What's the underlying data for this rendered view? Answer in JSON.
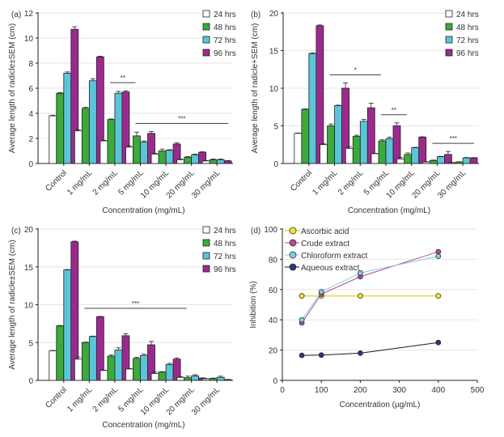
{
  "chart_data": [
    {
      "panel": "(a)",
      "type": "bar",
      "title": "",
      "xlabel": "Concentration (mg/mL)",
      "ylabel": "Average length of radicle±SEM (cm)",
      "ylim": [
        0,
        12
      ],
      "yticks": [
        0,
        2,
        4,
        6,
        8,
        10,
        12
      ],
      "grid": true,
      "legend_position": "top-right",
      "categories": [
        "Control",
        "1 mg/mL",
        "2 mg/mL",
        "5 mg/mL",
        "10 mg/mL",
        "20 mg/mL",
        "30 mg/mL"
      ],
      "series": [
        {
          "name": "24 hrs",
          "color": "#ffffff",
          "values": [
            3.8,
            2.6,
            1.8,
            1.3,
            0.75,
            0.3,
            0.2
          ],
          "errors": [
            0.05,
            0.1,
            0.05,
            0.1,
            0.05,
            0.05,
            0.03
          ]
        },
        {
          "name": "48 hrs",
          "color": "#3aaa3a",
          "values": [
            5.6,
            4.4,
            3.5,
            2.2,
            1.0,
            0.5,
            0.3
          ],
          "errors": [
            0.05,
            0.08,
            0.05,
            0.3,
            0.15,
            0.05,
            0.05
          ]
        },
        {
          "name": "72 hrs",
          "color": "#5bc4d8",
          "values": [
            7.2,
            6.6,
            5.6,
            1.7,
            1.05,
            0.7,
            0.3
          ],
          "errors": [
            0.1,
            0.15,
            0.15,
            0.1,
            0.05,
            0.05,
            0.05
          ]
        },
        {
          "name": "96 hrs",
          "color": "#9b2a8e",
          "values": [
            10.7,
            8.5,
            5.7,
            2.4,
            1.55,
            0.9,
            0.2
          ],
          "errors": [
            0.2,
            0.05,
            0.1,
            0.15,
            0.1,
            0.03,
            0.03
          ]
        }
      ],
      "annotations": [
        {
          "text": "**",
          "from": 2,
          "to": 3
        },
        {
          "text": "***",
          "from": 3,
          "to": 6
        }
      ]
    },
    {
      "panel": "(b)",
      "type": "bar",
      "title": "",
      "xlabel": "Concentration (mg/mL)",
      "ylabel": "Average length of radicle+SEM (cm)",
      "ylim": [
        0,
        20
      ],
      "yticks": [
        0,
        5,
        10,
        15,
        20
      ],
      "grid": true,
      "legend_position": "top-right",
      "categories": [
        "Control",
        "1 mg/mL",
        "2 mg/mL",
        "5 mg/mL",
        "10 mg/mL",
        "20 mg/mL",
        "30 mg/mL"
      ],
      "series": [
        {
          "name": "24 hrs",
          "color": "#ffffff",
          "values": [
            4.0,
            2.5,
            2.0,
            1.3,
            0.6,
            0.2,
            0.1
          ],
          "errors": [
            0.05,
            0.1,
            0.2,
            0.05,
            0.2,
            0.05,
            0.03
          ]
        },
        {
          "name": "48 hrs",
          "color": "#3aaa3a",
          "values": [
            7.2,
            5.0,
            3.6,
            3.0,
            1.2,
            0.4,
            0.2
          ],
          "errors": [
            0.05,
            0.25,
            0.15,
            0.15,
            0.2,
            0.05,
            0.03
          ]
        },
        {
          "name": "72 hrs",
          "color": "#5bc4d8",
          "values": [
            14.6,
            7.7,
            5.6,
            3.3,
            2.1,
            0.9,
            0.75
          ],
          "errors": [
            0.1,
            0.05,
            0.25,
            0.2,
            0.05,
            0.05,
            0.05
          ]
        },
        {
          "name": "96 hrs",
          "color": "#9b2a8e",
          "values": [
            18.3,
            10.0,
            7.4,
            5.0,
            3.5,
            1.2,
            0.75
          ],
          "errors": [
            0.1,
            0.7,
            0.6,
            0.4,
            0.05,
            0.4,
            0.03
          ]
        }
      ],
      "annotations": [
        {
          "text": "*",
          "from": 1,
          "to": 3
        },
        {
          "text": "**",
          "from": 3,
          "to": 4
        },
        {
          "text": "***",
          "from": 5,
          "to": 6
        }
      ]
    },
    {
      "panel": "(c)",
      "type": "bar",
      "title": "",
      "xlabel": "Concentration (mg/mL)",
      "ylabel": "Average length of radicle±SEM (cm)",
      "ylim": [
        0,
        20
      ],
      "yticks": [
        0,
        5,
        10,
        15,
        20
      ],
      "grid": true,
      "legend_position": "top-right",
      "categories": [
        "Control",
        "1 mg/mL",
        "2 mg/mL",
        "5 mg/mL",
        "10 mg/mL",
        "20 mg/mL",
        "30 mg/mL"
      ],
      "series": [
        {
          "name": "24 hrs",
          "color": "#ffffff",
          "values": [
            3.9,
            2.8,
            1.3,
            1.5,
            0.9,
            0.4,
            0.2
          ],
          "errors": [
            0.05,
            0.3,
            0.03,
            0.05,
            0.2,
            0.1,
            0.03
          ]
        },
        {
          "name": "48 hrs",
          "color": "#3aaa3a",
          "values": [
            7.2,
            5.0,
            3.2,
            2.9,
            1.1,
            0.35,
            0.25
          ],
          "errors": [
            0.05,
            0.05,
            0.15,
            0.15,
            0.05,
            0.2,
            0.05
          ]
        },
        {
          "name": "72 hrs",
          "color": "#5bc4d8",
          "values": [
            14.6,
            5.8,
            4.0,
            3.3,
            2.1,
            0.6,
            0.4
          ],
          "errors": [
            0.05,
            0.05,
            0.3,
            0.15,
            0.15,
            0.15,
            0.15
          ]
        },
        {
          "name": "96 hrs",
          "color": "#9b2a8e",
          "values": [
            18.3,
            8.4,
            5.9,
            4.7,
            2.8,
            0.3,
            0.1
          ],
          "errors": [
            0.1,
            0.05,
            0.25,
            0.45,
            0.15,
            0.03,
            0.03
          ]
        }
      ],
      "annotations": [
        {
          "text": "***",
          "from": 1,
          "to": 5
        }
      ]
    },
    {
      "panel": "(d)",
      "type": "line",
      "title": "",
      "xlabel": "Concentration (µg/mL)",
      "ylabel": "Inhibition (%)",
      "xlim": [
        0,
        500
      ],
      "ylim": [
        0,
        100
      ],
      "xticks": [
        0,
        100,
        200,
        300,
        400,
        500
      ],
      "yticks": [
        0,
        20,
        40,
        60,
        80,
        100
      ],
      "grid": true,
      "legend_position": "top-left",
      "x": [
        50,
        100,
        200,
        400
      ],
      "series": [
        {
          "name": "Ascorbic acid",
          "color": "#e8e070",
          "marker": "#f2e23a",
          "values": [
            55.8,
            55.8,
            55.8,
            55.8
          ]
        },
        {
          "name": "Crude extract",
          "color": "#b04c9a",
          "marker": "#b04c9a",
          "values": [
            38,
            57,
            68.5,
            85
          ]
        },
        {
          "name": "Chloroform extract",
          "color": "#7fcde0",
          "marker": "#7fcde0",
          "values": [
            40,
            58.5,
            71,
            82
          ]
        },
        {
          "name": "Aqueous extract",
          "color": "#1a1a1a",
          "marker": "#2a3a7a",
          "values": [
            16.5,
            16.7,
            18,
            25
          ]
        }
      ]
    }
  ]
}
